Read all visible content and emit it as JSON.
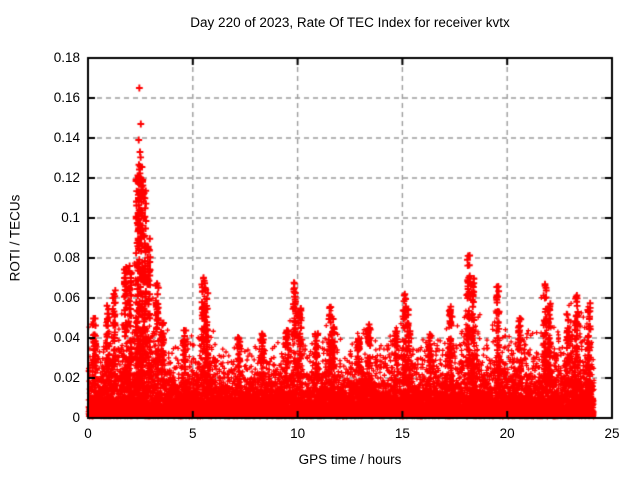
{
  "page": {
    "background": "#ffffff"
  },
  "chart_data": {
    "type": "scatter",
    "title": "Day 220 of 2023, Rate Of TEC Index for receiver kvtx",
    "xlabel": "GPS time / hours",
    "ylabel": "ROTI / TECUs",
    "xlim": [
      0,
      25
    ],
    "ylim": [
      0,
      0.18
    ],
    "xtick_values": [
      0,
      5,
      10,
      15,
      20,
      25
    ],
    "xtick_labels": [
      "0",
      "5",
      "10",
      "15",
      "20",
      "25"
    ],
    "ytick_values": [
      0,
      0.02,
      0.04,
      0.06,
      0.08,
      0.1,
      0.12,
      0.14,
      0.16,
      0.18
    ],
    "ytick_labels": [
      "0",
      "0.02",
      "0.04",
      "0.06",
      "0.08",
      "0.1",
      "0.12",
      "0.14",
      "0.16",
      "0.18"
    ],
    "grid": {
      "style": "dashed",
      "color": "#9c9c9c"
    },
    "axis_color": "#000000",
    "text_color": "#000000",
    "marker": {
      "glyph": "plus",
      "color": "#ff0000"
    },
    "legend": "none",
    "seed": 220,
    "time_range": [
      0,
      24.15
    ],
    "baseline": {
      "floor": 0.0005,
      "scale_base": 0.0045,
      "scale_envelope_factor": 0.1,
      "points": 15000
    },
    "envelope": [
      [
        0.0,
        0.05
      ],
      [
        0.3,
        0.052
      ],
      [
        0.6,
        0.038
      ],
      [
        0.9,
        0.06
      ],
      [
        1.2,
        0.068
      ],
      [
        1.5,
        0.058
      ],
      [
        1.8,
        0.078
      ],
      [
        2.0,
        0.082
      ],
      [
        2.2,
        0.1
      ],
      [
        2.45,
        0.14
      ],
      [
        2.7,
        0.12
      ],
      [
        3.0,
        0.09
      ],
      [
        3.3,
        0.07
      ],
      [
        3.6,
        0.05
      ],
      [
        4.0,
        0.038
      ],
      [
        4.4,
        0.042
      ],
      [
        4.8,
        0.045
      ],
      [
        5.2,
        0.05
      ],
      [
        5.55,
        0.073
      ],
      [
        5.9,
        0.06
      ],
      [
        6.3,
        0.036
      ],
      [
        6.7,
        0.032
      ],
      [
        7.1,
        0.042
      ],
      [
        7.5,
        0.036
      ],
      [
        7.9,
        0.034
      ],
      [
        8.3,
        0.044
      ],
      [
        8.7,
        0.035
      ],
      [
        9.1,
        0.038
      ],
      [
        9.5,
        0.045
      ],
      [
        9.85,
        0.068
      ],
      [
        10.15,
        0.058
      ],
      [
        10.5,
        0.036
      ],
      [
        10.9,
        0.046
      ],
      [
        11.2,
        0.042
      ],
      [
        11.55,
        0.056
      ],
      [
        11.9,
        0.048
      ],
      [
        12.3,
        0.036
      ],
      [
        12.7,
        0.042
      ],
      [
        13.1,
        0.048
      ],
      [
        13.5,
        0.05
      ],
      [
        13.9,
        0.036
      ],
      [
        14.3,
        0.042
      ],
      [
        14.7,
        0.046
      ],
      [
        15.1,
        0.062
      ],
      [
        15.45,
        0.056
      ],
      [
        15.8,
        0.038
      ],
      [
        16.2,
        0.044
      ],
      [
        16.6,
        0.04
      ],
      [
        17.0,
        0.048
      ],
      [
        17.35,
        0.058
      ],
      [
        17.7,
        0.046
      ],
      [
        18.1,
        0.082
      ],
      [
        18.4,
        0.072
      ],
      [
        18.8,
        0.046
      ],
      [
        19.2,
        0.044
      ],
      [
        19.55,
        0.066
      ],
      [
        19.9,
        0.052
      ],
      [
        20.3,
        0.046
      ],
      [
        20.7,
        0.054
      ],
      [
        21.0,
        0.048
      ],
      [
        21.4,
        0.056
      ],
      [
        21.8,
        0.068
      ],
      [
        22.1,
        0.058
      ],
      [
        22.5,
        0.052
      ],
      [
        22.9,
        0.056
      ],
      [
        23.3,
        0.062
      ],
      [
        23.6,
        0.054
      ],
      [
        23.9,
        0.058
      ],
      [
        24.15,
        0.042
      ]
    ],
    "spikes": [
      [
        0.3,
        0.05
      ],
      [
        0.95,
        0.06
      ],
      [
        1.25,
        0.066
      ],
      [
        1.8,
        0.076
      ],
      [
        2.0,
        0.08
      ],
      [
        2.35,
        0.12
      ],
      [
        2.45,
        0.132
      ],
      [
        2.55,
        0.126
      ],
      [
        2.7,
        0.115
      ],
      [
        2.9,
        0.092
      ],
      [
        3.3,
        0.068
      ],
      [
        3.55,
        0.048
      ],
      [
        4.6,
        0.044
      ],
      [
        5.5,
        0.072
      ],
      [
        5.65,
        0.068
      ],
      [
        7.2,
        0.042
      ],
      [
        8.3,
        0.043
      ],
      [
        9.5,
        0.044
      ],
      [
        9.85,
        0.068
      ],
      [
        10.1,
        0.056
      ],
      [
        10.9,
        0.044
      ],
      [
        11.55,
        0.056
      ],
      [
        11.7,
        0.05
      ],
      [
        12.9,
        0.04
      ],
      [
        13.4,
        0.048
      ],
      [
        14.7,
        0.044
      ],
      [
        15.1,
        0.062
      ],
      [
        15.3,
        0.055
      ],
      [
        16.3,
        0.042
      ],
      [
        17.3,
        0.056
      ],
      [
        18.15,
        0.082
      ],
      [
        18.35,
        0.07
      ],
      [
        19.55,
        0.066
      ],
      [
        20.6,
        0.05
      ],
      [
        21.8,
        0.068
      ],
      [
        22.0,
        0.06
      ],
      [
        22.9,
        0.052
      ],
      [
        23.3,
        0.062
      ],
      [
        23.9,
        0.058
      ]
    ],
    "outliers": [
      [
        2.45,
        0.165
      ],
      [
        2.52,
        0.147
      ],
      [
        2.42,
        0.139
      ],
      [
        2.48,
        0.133
      ]
    ]
  }
}
